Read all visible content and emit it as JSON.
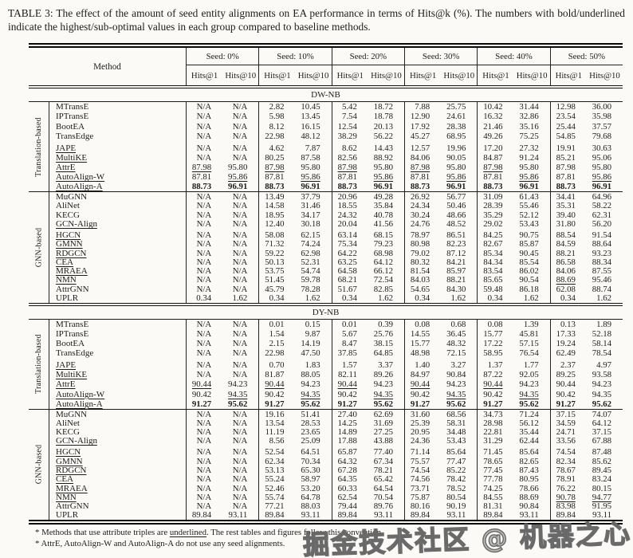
{
  "page": {
    "title": "TABLE 3: The effect of the amount of seed entity alignments on EA performance in terms of Hits@k (%). The numbers with bold/underlined indicate the highest/sub-optimal values in each group compared to baseline methods.",
    "watermark": "掘金技术社区 @ 机器之心"
  },
  "header": {
    "method_label": "Method",
    "seed_labels": [
      "Seed: 0%",
      "Seed: 10%",
      "Seed: 20%",
      "Seed: 30%",
      "Seed: 40%",
      "Seed: 50%"
    ],
    "metric_labels": [
      "Hits@1",
      "Hits@10"
    ]
  },
  "sections": [
    {
      "name": "DW-NB",
      "groups": [
        {
          "label": "Translation-based",
          "gap_after": 3,
          "rows": [
            {
              "m": "MTransE",
              "v": [
                "N/A",
                "N/A",
                "2.82",
                "10.45",
                "5.42",
                "18.72",
                "7.88",
                "25.75",
                "10.42",
                "31.44",
                "12.98",
                "36.00"
              ]
            },
            {
              "m": "IPTransE",
              "v": [
                "N/A",
                "N/A",
                "5.98",
                "13.45",
                "7.54",
                "18.78",
                "12.90",
                "24.61",
                "16.32",
                "32.86",
                "23.54",
                "35.98"
              ]
            },
            {
              "m": "BootEA",
              "v": [
                "N/A",
                "N/A",
                "8.12",
                "16.15",
                "12.54",
                "20.13",
                "17.92",
                "28.38",
                "21.46",
                "35.16",
                "25.44",
                "37.57"
              ]
            },
            {
              "m": "TransEdge",
              "v": [
                "N/A",
                "N/A",
                "22.98",
                "48.12",
                "38.29",
                "56.22",
                "45.27",
                "68.95",
                "49.26",
                "75.25",
                "54.85",
                "79.68"
              ]
            },
            {
              "m": "JAPE",
              "mu": true,
              "v": [
                "N/A",
                "N/A",
                "4.62",
                "7.87",
                "8.62",
                "14.43",
                "12.57",
                "19.96",
                "17.20",
                "27.32",
                "19.91",
                "30.63"
              ]
            },
            {
              "m": "MultiKE",
              "mu": true,
              "v": [
                "N/A",
                "N/A",
                "80.25",
                "87.58",
                "82.56",
                "88.92",
                "84.06",
                "90.05",
                "84.87",
                "91.24",
                "85.21",
                "95.06"
              ]
            },
            {
              "m": "AttrE",
              "mu": true,
              "u": [
                0,
                2,
                4,
                6,
                8
              ],
              "v": [
                "87.98",
                "95.80",
                "87.98",
                "95.80",
                "87.98",
                "95.80",
                "87.98",
                "95.80",
                "87.98",
                "95.80",
                "87.98",
                "95.80"
              ]
            },
            {
              "m": "AutoAlign-W",
              "mu": true,
              "u": [
                1,
                3,
                5,
                7,
                9,
                11
              ],
              "v": [
                "87.81",
                "95.86",
                "87.81",
                "95.86",
                "87.81",
                "95.86",
                "87.81",
                "95.86",
                "87.81",
                "95.86",
                "87.81",
                "95.86"
              ]
            },
            {
              "m": "AutoAlign-A",
              "mu": true,
              "b": true,
              "v": [
                "88.73",
                "96.91",
                "88.73",
                "96.91",
                "88.73",
                "96.91",
                "88.73",
                "96.91",
                "88.73",
                "96.91",
                "88.73",
                "96.91"
              ]
            }
          ]
        },
        {
          "label": "GNN-based",
          "gap_after": 3,
          "rows": [
            {
              "m": "MuGNN",
              "v": [
                "N/A",
                "N/A",
                "13.49",
                "37.79",
                "20.96",
                "49.28",
                "26.92",
                "56.77",
                "31.09",
                "61.43",
                "34.41",
                "64.96"
              ]
            },
            {
              "m": "AliNet",
              "v": [
                "N/A",
                "N/A",
                "14.58",
                "31.46",
                "18.55",
                "35.84",
                "24.34",
                "50.46",
                "28.39",
                "55.46",
                "35.31",
                "58.22"
              ]
            },
            {
              "m": "KECG",
              "v": [
                "N/A",
                "N/A",
                "18.95",
                "34.17",
                "24.32",
                "40.78",
                "30.24",
                "48.66",
                "35.29",
                "52.12",
                "39.40",
                "62.31"
              ]
            },
            {
              "m": "GCN-Align",
              "mu": true,
              "v": [
                "N/A",
                "N/A",
                "12.40",
                "30.18",
                "20.04",
                "41.56",
                "24.76",
                "48.52",
                "29.02",
                "53.43",
                "31.80",
                "56.20"
              ]
            },
            {
              "m": "HGCN",
              "mu": true,
              "v": [
                "N/A",
                "N/A",
                "58.08",
                "62.15",
                "63.14",
                "68.15",
                "78.97",
                "86.51",
                "84.25",
                "90.75",
                "88.54",
                "91.54"
              ]
            },
            {
              "m": "GMNN",
              "mu": true,
              "v": [
                "N/A",
                "N/A",
                "71.32",
                "74.24",
                "75.34",
                "79.23",
                "80.98",
                "82.23",
                "82.67",
                "85.87",
                "84.59",
                "88.64"
              ]
            },
            {
              "m": "RDGCN",
              "mu": true,
              "v": [
                "N/A",
                "N/A",
                "59.22",
                "62.98",
                "64.22",
                "68.98",
                "79.02",
                "87.12",
                "85.34",
                "90.45",
                "88.21",
                "93.23"
              ]
            },
            {
              "m": "CEA",
              "mu": true,
              "v": [
                "N/A",
                "N/A",
                "50.13",
                "52.31",
                "63.25",
                "64.12",
                "80.32",
                "84.21",
                "84.34",
                "85.54",
                "86.58",
                "88.34"
              ]
            },
            {
              "m": "MRAEA",
              "mu": true,
              "v": [
                "N/A",
                "N/A",
                "53.75",
                "54.74",
                "64.58",
                "66.12",
                "81.54",
                "85.97",
                "83.54",
                "86.02",
                "84.06",
                "87.55"
              ]
            },
            {
              "m": "NMN",
              "mu": true,
              "u": [
                10
              ],
              "v": [
                "N/A",
                "N/A",
                "51.45",
                "59.78",
                "68.21",
                "72.54",
                "84.03",
                "88.21",
                "85.65",
                "90.54",
                "88.69",
                "95.46"
              ]
            },
            {
              "m": "AttrGNN",
              "v": [
                "N/A",
                "N/A",
                "45.79",
                "78.28",
                "51.67",
                "82.85",
                "54.65",
                "84.30",
                "59.48",
                "86.18",
                "62.08",
                "88.74"
              ]
            },
            {
              "m": "UPLR",
              "v": [
                "0.34",
                "1.62",
                "0.34",
                "1.62",
                "0.34",
                "1.62",
                "0.34",
                "1.62",
                "0.34",
                "1.62",
                "0.34",
                "1.62"
              ]
            }
          ]
        }
      ]
    },
    {
      "name": "DY-NB",
      "groups": [
        {
          "label": "Translation-based",
          "gap_after": 3,
          "rows": [
            {
              "m": "MTransE",
              "v": [
                "N/A",
                "N/A",
                "0.01",
                "0.15",
                "0.01",
                "0.39",
                "0.08",
                "0.68",
                "0.08",
                "1.39",
                "0.13",
                "1.89"
              ]
            },
            {
              "m": "IPTransE",
              "v": [
                "N/A",
                "N/A",
                "1.54",
                "9.87",
                "5.67",
                "25.76",
                "14.55",
                "36.45",
                "15.77",
                "45.81",
                "17.33",
                "52.18"
              ]
            },
            {
              "m": "BootEA",
              "v": [
                "N/A",
                "N/A",
                "2.15",
                "14.19",
                "8.47",
                "38.15",
                "15.77",
                "48.32",
                "17.22",
                "57.15",
                "19.24",
                "58.14"
              ]
            },
            {
              "m": "TransEdge",
              "v": [
                "N/A",
                "N/A",
                "22.98",
                "47.50",
                "37.85",
                "64.85",
                "48.98",
                "72.15",
                "58.95",
                "76.54",
                "62.49",
                "78.54"
              ]
            },
            {
              "m": "JAPE",
              "mu": true,
              "v": [
                "N/A",
                "N/A",
                "0.70",
                "1.83",
                "1.57",
                "3.37",
                "1.40",
                "3.27",
                "1.37",
                "1.77",
                "2.37",
                "4.97"
              ]
            },
            {
              "m": "MultiKE",
              "mu": true,
              "v": [
                "N/A",
                "N/A",
                "81.87",
                "88.05",
                "82.11",
                "89.26",
                "84.97",
                "90.84",
                "87.22",
                "92.05",
                "89.25",
                "93.58"
              ]
            },
            {
              "m": "AttrE",
              "mu": true,
              "u": [
                0,
                2,
                4,
                6,
                8
              ],
              "v": [
                "90.44",
                "94.23",
                "90.44",
                "94.23",
                "90.44",
                "94.23",
                "90.44",
                "94.23",
                "90.44",
                "94.23",
                "90.44",
                "94.23"
              ]
            },
            {
              "m": "AutoAlign-W",
              "mu": true,
              "u": [
                1,
                3,
                5,
                7,
                9
              ],
              "v": [
                "90.42",
                "94.35",
                "90.42",
                "94.35",
                "90.42",
                "94.35",
                "90.42",
                "94.35",
                "90.42",
                "94.35",
                "90.42",
                "94.35"
              ]
            },
            {
              "m": "AutoAlign-A",
              "mu": true,
              "b": true,
              "v": [
                "91.27",
                "95.62",
                "91.27",
                "95.62",
                "91.27",
                "95.62",
                "91.27",
                "95.62",
                "91.27",
                "95.62",
                "91.27",
                "95.62"
              ]
            }
          ]
        },
        {
          "label": "GNN-based",
          "gap_after": 3,
          "rows": [
            {
              "m": "MuGNN",
              "v": [
                "N/A",
                "N/A",
                "19.16",
                "51.41",
                "27.40",
                "62.69",
                "31.60",
                "68.56",
                "34.73",
                "71.24",
                "37.15",
                "74.07"
              ]
            },
            {
              "m": "AliNet",
              "v": [
                "N/A",
                "N/A",
                "13.54",
                "28.53",
                "14.25",
                "31.69",
                "25.39",
                "58.31",
                "28.98",
                "56.12",
                "34.59",
                "64.12"
              ]
            },
            {
              "m": "KECG",
              "v": [
                "N/A",
                "N/A",
                "11.19",
                "23.65",
                "14.89",
                "27.25",
                "20.95",
                "34.48",
                "22.81",
                "35.44",
                "24.71",
                "37.15"
              ]
            },
            {
              "m": "GCN-Align",
              "mu": true,
              "v": [
                "N/A",
                "N/A",
                "8.56",
                "25.09",
                "17.88",
                "43.88",
                "24.36",
                "53.43",
                "31.29",
                "62.44",
                "33.56",
                "67.88"
              ]
            },
            {
              "m": "HGCN",
              "mu": true,
              "v": [
                "N/A",
                "N/A",
                "52.54",
                "64.51",
                "65.87",
                "77.40",
                "71.14",
                "85.64",
                "71.45",
                "85.64",
                "74.54",
                "87.48"
              ]
            },
            {
              "m": "GMNN",
              "mu": true,
              "v": [
                "N/A",
                "N/A",
                "62.34",
                "70.34",
                "64.32",
                "67.34",
                "75.57",
                "77.47",
                "78.65",
                "82.65",
                "82.34",
                "85.62"
              ]
            },
            {
              "m": "RDGCN",
              "mu": true,
              "v": [
                "N/A",
                "N/A",
                "53.13",
                "65.30",
                "67.28",
                "78.21",
                "74.54",
                "85.22",
                "77.45",
                "87.43",
                "78.67",
                "89.45"
              ]
            },
            {
              "m": "CEA",
              "mu": true,
              "v": [
                "N/A",
                "N/A",
                "55.24",
                "58.97",
                "64.35",
                "65.42",
                "74.56",
                "78.42",
                "77.78",
                "80.95",
                "78.91",
                "83.24"
              ]
            },
            {
              "m": "MRAEA",
              "mu": true,
              "v": [
                "N/A",
                "N/A",
                "52.46",
                "53.20",
                "60.33",
                "64.54",
                "73.71",
                "78.52",
                "74.25",
                "78.66",
                "76.22",
                "80.15"
              ]
            },
            {
              "m": "NMN",
              "mu": true,
              "u": [
                10,
                11
              ],
              "v": [
                "N/A",
                "N/A",
                "55.74",
                "64.78",
                "62.54",
                "70.54",
                "75.87",
                "80.54",
                "84.55",
                "88.69",
                "90.78",
                "94.77"
              ]
            },
            {
              "m": "AttrGNN",
              "v": [
                "N/A",
                "N/A",
                "77.21",
                "88.03",
                "79.44",
                "89.76",
                "80.16",
                "90.19",
                "81.31",
                "90.84",
                "83.98",
                "91.95"
              ]
            },
            {
              "m": "UPLR",
              "v": [
                "89.84",
                "93.11",
                "89.84",
                "93.11",
                "89.84",
                "93.11",
                "89.84",
                "93.11",
                "89.84",
                "93.11",
                "89.84",
                "93.11"
              ]
            }
          ]
        }
      ]
    }
  ],
  "footnotes": {
    "note1_pre": "* Methods that use attribute triples are ",
    "note1_underlined": "underlined",
    "note1_post": ". The rest tables and figures follow this convention.",
    "note2": "* AttrE, AutoAlign-W and AutoAlign-A do not use any seed alignments."
  },
  "colors": {
    "background": "#fbfaf7",
    "ink": "#1d1d1d",
    "rule": "#111111",
    "watermark_outline": "#5f5f5f"
  }
}
